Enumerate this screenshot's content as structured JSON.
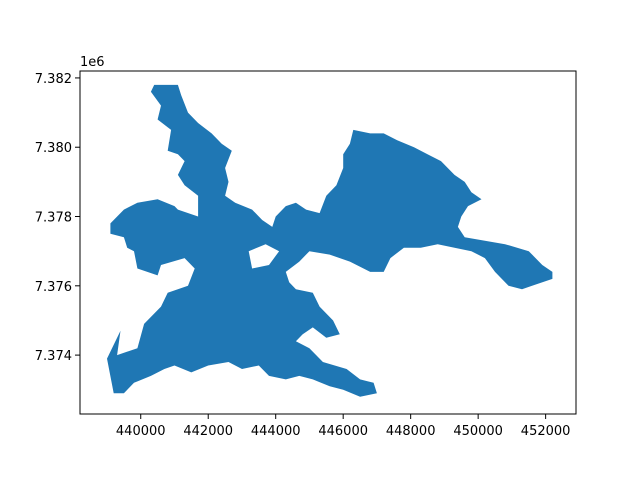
{
  "chart_data": {
    "type": "choropleth-map",
    "title": "",
    "xlabel": "",
    "ylabel": "",
    "grid": false,
    "legend": "none",
    "fill_color": "#1f77b4",
    "xlim": [
      438200,
      452900
    ],
    "ylim": [
      7372300,
      7382200
    ],
    "x_ticks": [
      440000,
      442000,
      444000,
      446000,
      448000,
      450000,
      452000
    ],
    "y_ticks": [
      7374,
      7376,
      7378,
      7380,
      7382
    ],
    "y_offset_label": "1e6",
    "outline": [
      [
        439000,
        7373900
      ],
      [
        439400,
        7374700
      ],
      [
        439300,
        7374000
      ],
      [
        439900,
        7374200
      ],
      [
        440100,
        7374900
      ],
      [
        440600,
        7375400
      ],
      [
        440800,
        7375800
      ],
      [
        441400,
        7376000
      ],
      [
        441600,
        7376500
      ],
      [
        441300,
        7376800
      ],
      [
        440600,
        7376600
      ],
      [
        440500,
        7376300
      ],
      [
        439900,
        7376500
      ],
      [
        439800,
        7377000
      ],
      [
        439600,
        7377100
      ],
      [
        439500,
        7377400
      ],
      [
        439100,
        7377500
      ],
      [
        439100,
        7377800
      ],
      [
        439500,
        7378200
      ],
      [
        439900,
        7378400
      ],
      [
        440500,
        7378500
      ],
      [
        441000,
        7378300
      ],
      [
        441100,
        7378200
      ],
      [
        441700,
        7378000
      ],
      [
        441700,
        7378600
      ],
      [
        441300,
        7378900
      ],
      [
        441100,
        7379200
      ],
      [
        441300,
        7379600
      ],
      [
        441100,
        7379800
      ],
      [
        440800,
        7379900
      ],
      [
        440900,
        7380500
      ],
      [
        440500,
        7380800
      ],
      [
        440600,
        7381200
      ],
      [
        440300,
        7381600
      ],
      [
        440400,
        7381800
      ],
      [
        441100,
        7381800
      ],
      [
        441200,
        7381500
      ],
      [
        441400,
        7381000
      ],
      [
        441700,
        7380700
      ],
      [
        442100,
        7380400
      ],
      [
        442400,
        7380100
      ],
      [
        442700,
        7379900
      ],
      [
        442500,
        7379400
      ],
      [
        442600,
        7379000
      ],
      [
        442500,
        7378600
      ],
      [
        442800,
        7378400
      ],
      [
        443300,
        7378200
      ],
      [
        443600,
        7377900
      ],
      [
        443900,
        7377700
      ],
      [
        444000,
        7378000
      ],
      [
        444300,
        7378300
      ],
      [
        444600,
        7378400
      ],
      [
        444900,
        7378200
      ],
      [
        445300,
        7378100
      ],
      [
        445500,
        7378600
      ],
      [
        445800,
        7378900
      ],
      [
        446000,
        7379400
      ],
      [
        446000,
        7379800
      ],
      [
        446200,
        7380100
      ],
      [
        446300,
        7380500
      ],
      [
        446800,
        7380400
      ],
      [
        447200,
        7380400
      ],
      [
        447600,
        7380200
      ],
      [
        448100,
        7380000
      ],
      [
        448500,
        7379800
      ],
      [
        448900,
        7379600
      ],
      [
        449300,
        7379200
      ],
      [
        449600,
        7379000
      ],
      [
        449800,
        7378700
      ],
      [
        450100,
        7378500
      ],
      [
        449700,
        7378300
      ],
      [
        449500,
        7378000
      ],
      [
        449400,
        7377700
      ],
      [
        449600,
        7377400
      ],
      [
        450200,
        7377300
      ],
      [
        450800,
        7377200
      ],
      [
        451500,
        7377000
      ],
      [
        451900,
        7376600
      ],
      [
        452200,
        7376400
      ],
      [
        452200,
        7376200
      ],
      [
        451600,
        7376000
      ],
      [
        451300,
        7375900
      ],
      [
        450900,
        7376000
      ],
      [
        450500,
        7376400
      ],
      [
        450200,
        7376800
      ],
      [
        449800,
        7377000
      ],
      [
        449300,
        7377100
      ],
      [
        448800,
        7377200
      ],
      [
        448300,
        7377100
      ],
      [
        447800,
        7377100
      ],
      [
        447400,
        7376800
      ],
      [
        447200,
        7376400
      ],
      [
        446800,
        7376400
      ],
      [
        446200,
        7376700
      ],
      [
        445600,
        7376900
      ],
      [
        445000,
        7377000
      ],
      [
        444700,
        7376700
      ],
      [
        444300,
        7376400
      ],
      [
        444400,
        7376100
      ],
      [
        444600,
        7375900
      ],
      [
        445100,
        7375800
      ],
      [
        445300,
        7375400
      ],
      [
        445700,
        7375000
      ],
      [
        445900,
        7374600
      ],
      [
        445500,
        7374500
      ],
      [
        445100,
        7374800
      ],
      [
        444800,
        7374600
      ],
      [
        444600,
        7374400
      ],
      [
        445000,
        7374200
      ],
      [
        445400,
        7373800
      ],
      [
        446100,
        7373600
      ],
      [
        446500,
        7373300
      ],
      [
        446900,
        7373200
      ],
      [
        447000,
        7372900
      ],
      [
        446500,
        7372800
      ],
      [
        446000,
        7373000
      ],
      [
        445600,
        7373100
      ],
      [
        445100,
        7373300
      ],
      [
        444700,
        7373400
      ],
      [
        444300,
        7373300
      ],
      [
        443800,
        7373400
      ],
      [
        443500,
        7373700
      ],
      [
        443000,
        7373600
      ],
      [
        442600,
        7373800
      ],
      [
        442000,
        7373700
      ],
      [
        441500,
        7373500
      ],
      [
        441000,
        7373700
      ],
      [
        440700,
        7373600
      ],
      [
        440300,
        7373400
      ],
      [
        439800,
        7373200
      ],
      [
        439500,
        7372900
      ],
      [
        439200,
        7372900
      ]
    ],
    "holes": [
      [
        [
          443300,
          7376500
        ],
        [
          443800,
          7376600
        ],
        [
          444100,
          7377000
        ],
        [
          443700,
          7377200
        ],
        [
          443200,
          7377000
        ]
      ]
    ]
  }
}
